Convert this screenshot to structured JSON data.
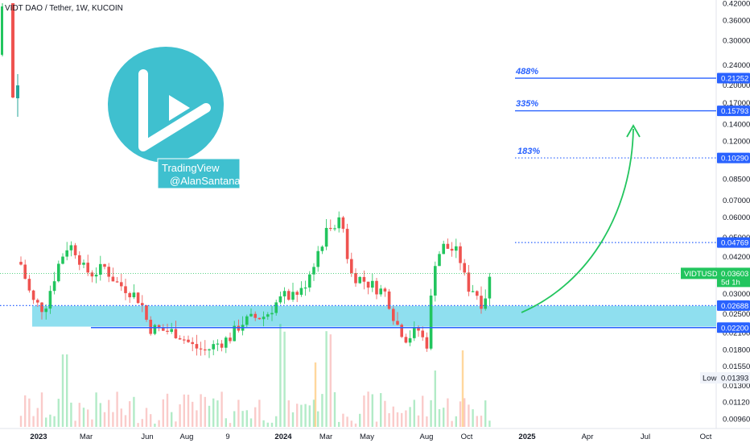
{
  "header": {
    "title": "VIDT DAO / Tether, 1W, KUCOIN"
  },
  "watermark": {
    "line1": "TradingView",
    "line2": "@AlanSantana"
  },
  "colors": {
    "up": "#26a69a",
    "up_bright": "#22c55e",
    "down": "#ef5350",
    "level": "#2962ff",
    "zone": "#8fdfef",
    "arrow": "#22c55e",
    "logo": "#3fc0cf"
  },
  "chart_data": {
    "type": "candlestick",
    "symbol": "VIDTUSDT",
    "scale": "log",
    "ylim": [
      0.0088,
      0.425
    ],
    "y_ticks": [
      "0.42000",
      "0.36000",
      "0.30000",
      "0.24000",
      "0.20000",
      "0.17000",
      "0.14000",
      "0.12000",
      "0.08500",
      "0.07000",
      "0.06000",
      "0.05000",
      "0.04200",
      "0.03000",
      "0.02500",
      "0.02100",
      "0.01800",
      "0.01550",
      "0.01300",
      "0.01120",
      "0.00960"
    ],
    "x_ticks": [
      {
        "label": "2023",
        "year": true
      },
      {
        "label": "Mar",
        "year": false
      },
      {
        "label": "Jun",
        "year": false
      },
      {
        "label": "Aug",
        "year": false
      },
      {
        "label": "9",
        "year": false
      },
      {
        "label": "2024",
        "year": true
      },
      {
        "label": "Mar",
        "year": false
      },
      {
        "label": "May",
        "year": false
      },
      {
        "label": "Aug",
        "year": false
      },
      {
        "label": "Oct",
        "year": false
      },
      {
        "label": "2025",
        "year": true
      },
      {
        "label": "Apr",
        "year": false
      },
      {
        "label": "Jul",
        "year": false
      },
      {
        "label": "Oct",
        "year": false
      }
    ],
    "levels": [
      {
        "value": 0.21252,
        "label": "0.21252",
        "style": "solid",
        "pct": "488%"
      },
      {
        "value": 0.15793,
        "label": "0.15793",
        "style": "solid",
        "pct": "335%"
      },
      {
        "value": 0.1029,
        "label": "0.10290",
        "style": "dotted",
        "pct": "183%"
      },
      {
        "value": 0.04769,
        "label": "0.04769",
        "style": "dotted",
        "pct": ""
      },
      {
        "value": 0.02688,
        "label": "0.02688",
        "style": "dotted",
        "pct": ""
      },
      {
        "value": 0.022,
        "label": "0.02200",
        "style": "solid",
        "pct": ""
      }
    ],
    "support_zone": [
      0.0222,
      0.0268
    ],
    "current": {
      "symbol": "VIDTUSDT",
      "price": "0.03603",
      "countdown": "5d 1h",
      "value": 0.03603
    },
    "low": {
      "label": "Low",
      "value": "0.01393"
    }
  }
}
